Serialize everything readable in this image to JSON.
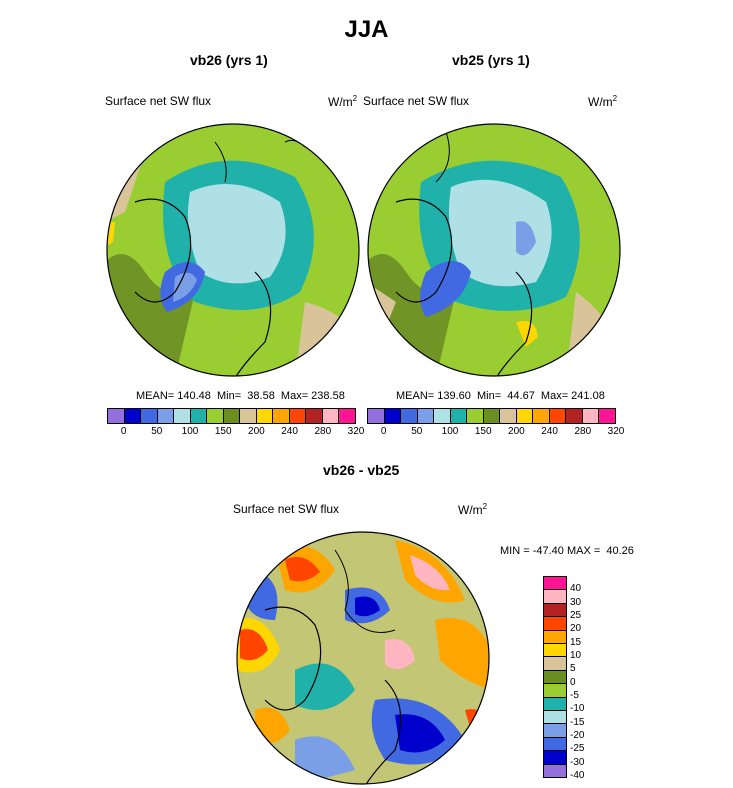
{
  "title": "JJA",
  "panel_left": {
    "title": "vb26 (yrs 1)",
    "field": "Surface net SW flux",
    "units": "W/m",
    "units_exp": "2",
    "stats": "MEAN= 140.48  Min=  38.58  Max= 238.58"
  },
  "panel_right": {
    "title": "vb25 (yrs 1)",
    "field": "Surface net SW flux",
    "units": "W/m",
    "units_exp": "2",
    "stats": "MEAN= 139.60  Min=  44.67  Max= 241.08"
  },
  "panel_diff": {
    "title": "vb26 - vb25",
    "field": "Surface net SW flux",
    "units": "W/m",
    "units_exp": "2",
    "stats": "MIN = -47.40 MAX =  40.26"
  },
  "colorbar_abs": {
    "colors": [
      "#9370DB",
      "#0000CD",
      "#4169E1",
      "#7B9FE6",
      "#AEE0E6",
      "#20B2AA",
      "#9ACD32",
      "#6B8E23",
      "#D9C49A",
      "#FFD700",
      "#FFA500",
      "#FF4500",
      "#B22222",
      "#FFB6C1",
      "#FF1493"
    ],
    "labels": [
      "0",
      "50",
      "100",
      "150",
      "200",
      "240",
      "280",
      "320"
    ]
  },
  "colorbar_diff": {
    "colors": [
      "#FF1493",
      "#FFB6C1",
      "#B22222",
      "#FF4500",
      "#FFA500",
      "#FFD700",
      "#D9C49A",
      "#6B8E23",
      "#9ACD32",
      "#20B2AA",
      "#AEE0E6",
      "#7B9FE6",
      "#4169E1",
      "#0000CD",
      "#9370DB"
    ],
    "labels": [
      "40",
      "30",
      "25",
      "20",
      "15",
      "10",
      "5",
      "0",
      "-5",
      "-10",
      "-15",
      "-20",
      "-25",
      "-30",
      "-40"
    ]
  }
}
